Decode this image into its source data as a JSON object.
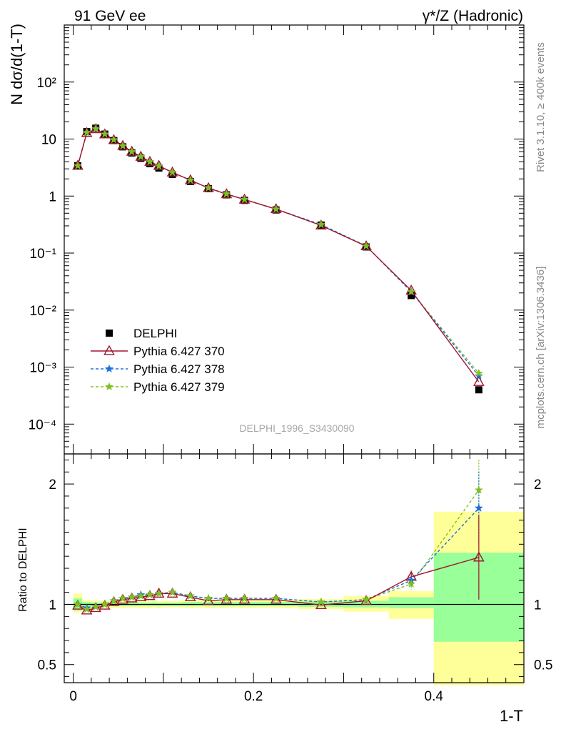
{
  "header": {
    "left_title": "91 GeV ee",
    "right_title": "γ*/Z (Hadronic)"
  },
  "side_labels": {
    "rivet": "Rivet 3.1.10, ≥ 400k events",
    "mcplots": "mcplots.cern.ch [arXiv:1306.3436]"
  },
  "analysis_label": "DELPHI_1996_S3430090",
  "colors": {
    "data": "#000000",
    "s370": "#a0152c",
    "s378": "#1e6fd9",
    "s379": "#7fc01f",
    "band_outer": "#ffff99",
    "band_inner": "#99ff99"
  },
  "chart_data": [
    {
      "type": "scatter",
      "panel": "main",
      "ylabel": "N dσ/d(1-T)",
      "yscale": "log",
      "xlim": [
        -0.01,
        0.5
      ],
      "ylim": [
        3e-05,
        1000
      ],
      "ytick_labels": [
        "10⁻⁴",
        "10⁻³",
        "10⁻²",
        "10⁻¹",
        "1",
        "10",
        "10²"
      ],
      "legend": {
        "placement": "center-left",
        "entries": [
          "DELPHI",
          "Pythia 6.427 370",
          "Pythia 6.427 378",
          "Pythia 6.427 379"
        ]
      },
      "x": [
        0.005,
        0.015,
        0.025,
        0.035,
        0.045,
        0.055,
        0.065,
        0.075,
        0.085,
        0.095,
        0.11,
        0.13,
        0.15,
        0.17,
        0.19,
        0.225,
        0.275,
        0.325,
        0.375,
        0.45
      ],
      "series": [
        {
          "name": "DELPHI",
          "values": [
            3.4,
            13.5,
            15.5,
            12.2,
            9.4,
            7.3,
            5.7,
            4.6,
            3.7,
            3.1,
            2.4,
            1.8,
            1.35,
            1.05,
            0.84,
            0.57,
            0.31,
            0.128,
            0.018,
            0.0004
          ]
        },
        {
          "name": "Pythia 6.427 370",
          "values": [
            3.4,
            12.8,
            14.9,
            12.1,
            9.6,
            7.6,
            6.0,
            4.9,
            4.0,
            3.4,
            2.6,
            1.9,
            1.38,
            1.08,
            0.87,
            0.59,
            0.305,
            0.132,
            0.022,
            0.00055
          ]
        },
        {
          "name": "Pythia 6.427 378",
          "values": [
            3.4,
            13.0,
            15.1,
            12.2,
            9.7,
            7.6,
            6.0,
            4.9,
            4.0,
            3.35,
            2.6,
            1.9,
            1.39,
            1.09,
            0.87,
            0.59,
            0.315,
            0.133,
            0.021,
            0.0007
          ]
        },
        {
          "name": "Pythia 6.427 379",
          "values": [
            3.4,
            13.0,
            15.1,
            12.2,
            9.7,
            7.6,
            6.0,
            4.9,
            4.0,
            3.35,
            2.6,
            1.9,
            1.39,
            1.09,
            0.87,
            0.59,
            0.315,
            0.133,
            0.021,
            0.00078
          ]
        }
      ]
    },
    {
      "type": "line",
      "panel": "ratio",
      "xlabel": "1-T",
      "ylabel": "Ratio to DELPHI",
      "xlim": [
        -0.01,
        0.5
      ],
      "ylim": [
        0.35,
        2.25
      ],
      "x_tick_labels": [
        "0",
        "0.2",
        "0.4"
      ],
      "ytick_labels": [
        "0.5",
        "1",
        "2"
      ],
      "x": [
        0.005,
        0.015,
        0.025,
        0.035,
        0.045,
        0.055,
        0.065,
        0.075,
        0.085,
        0.095,
        0.11,
        0.13,
        0.15,
        0.17,
        0.19,
        0.225,
        0.275,
        0.325,
        0.375,
        0.45
      ],
      "bands": [
        {
          "x0": 0.0,
          "x1": 0.01,
          "inner": [
            0.95,
            1.05
          ],
          "outer": [
            0.93,
            1.09
          ]
        },
        {
          "x0": 0.01,
          "x1": 0.02,
          "inner": [
            0.98,
            1.02
          ],
          "outer": [
            0.96,
            1.04
          ]
        },
        {
          "x0": 0.02,
          "x1": 0.1,
          "inner": [
            0.985,
            1.015
          ],
          "outer": [
            0.97,
            1.03
          ]
        },
        {
          "x0": 0.1,
          "x1": 0.12,
          "inner": [
            0.985,
            1.015
          ],
          "outer": [
            0.975,
            1.03
          ]
        },
        {
          "x0": 0.12,
          "x1": 0.25,
          "inner": [
            0.985,
            1.02
          ],
          "outer": [
            0.97,
            1.035
          ]
        },
        {
          "x0": 0.25,
          "x1": 0.3,
          "inner": [
            0.98,
            1.025
          ],
          "outer": [
            0.96,
            1.045
          ]
        },
        {
          "x0": 0.3,
          "x1": 0.35,
          "inner": [
            0.975,
            1.03
          ],
          "outer": [
            0.94,
            1.07
          ]
        },
        {
          "x0": 0.35,
          "x1": 0.4,
          "inner": [
            0.97,
            1.06
          ],
          "outer": [
            0.88,
            1.11
          ]
        },
        {
          "x0": 0.4,
          "x1": 0.5,
          "inner": [
            0.69,
            1.43
          ],
          "outer": [
            0.33,
            1.77
          ]
        }
      ],
      "series": [
        {
          "name": "Pythia 6.427 370",
          "values": [
            0.99,
            0.95,
            0.97,
            0.99,
            1.02,
            1.04,
            1.05,
            1.06,
            1.07,
            1.09,
            1.09,
            1.06,
            1.03,
            1.04,
            1.04,
            1.04,
            0.995,
            1.03,
            1.23,
            1.39
          ],
          "errors": [
            0.01,
            0.01,
            0.01,
            0.01,
            0.01,
            0.01,
            0.01,
            0.01,
            0.01,
            0.01,
            0.01,
            0.01,
            0.01,
            0.01,
            0.01,
            0.01,
            0.01,
            0.02,
            0.05,
            0.35
          ]
        },
        {
          "name": "Pythia 6.427 378",
          "values": [
            1.0,
            0.97,
            0.98,
            1.0,
            1.03,
            1.05,
            1.06,
            1.08,
            1.08,
            1.09,
            1.1,
            1.07,
            1.05,
            1.05,
            1.05,
            1.05,
            1.02,
            1.04,
            1.2,
            1.8
          ],
          "errors": [
            0.01,
            0.01,
            0.01,
            0.01,
            0.01,
            0.01,
            0.01,
            0.01,
            0.01,
            0.01,
            0.01,
            0.01,
            0.01,
            0.01,
            0.01,
            0.01,
            0.01,
            0.02,
            0.05,
            0.3
          ]
        },
        {
          "name": "Pythia 6.427 379",
          "values": [
            1.0,
            0.96,
            0.98,
            1.0,
            1.03,
            1.05,
            1.06,
            1.07,
            1.08,
            1.09,
            1.1,
            1.07,
            1.05,
            1.05,
            1.05,
            1.05,
            1.02,
            1.04,
            1.17,
            1.95
          ],
          "errors": [
            0.01,
            0.01,
            0.01,
            0.01,
            0.01,
            0.01,
            0.01,
            0.01,
            0.01,
            0.01,
            0.01,
            0.01,
            0.01,
            0.01,
            0.01,
            0.01,
            0.01,
            0.02,
            0.05,
            0.25
          ]
        }
      ]
    }
  ]
}
